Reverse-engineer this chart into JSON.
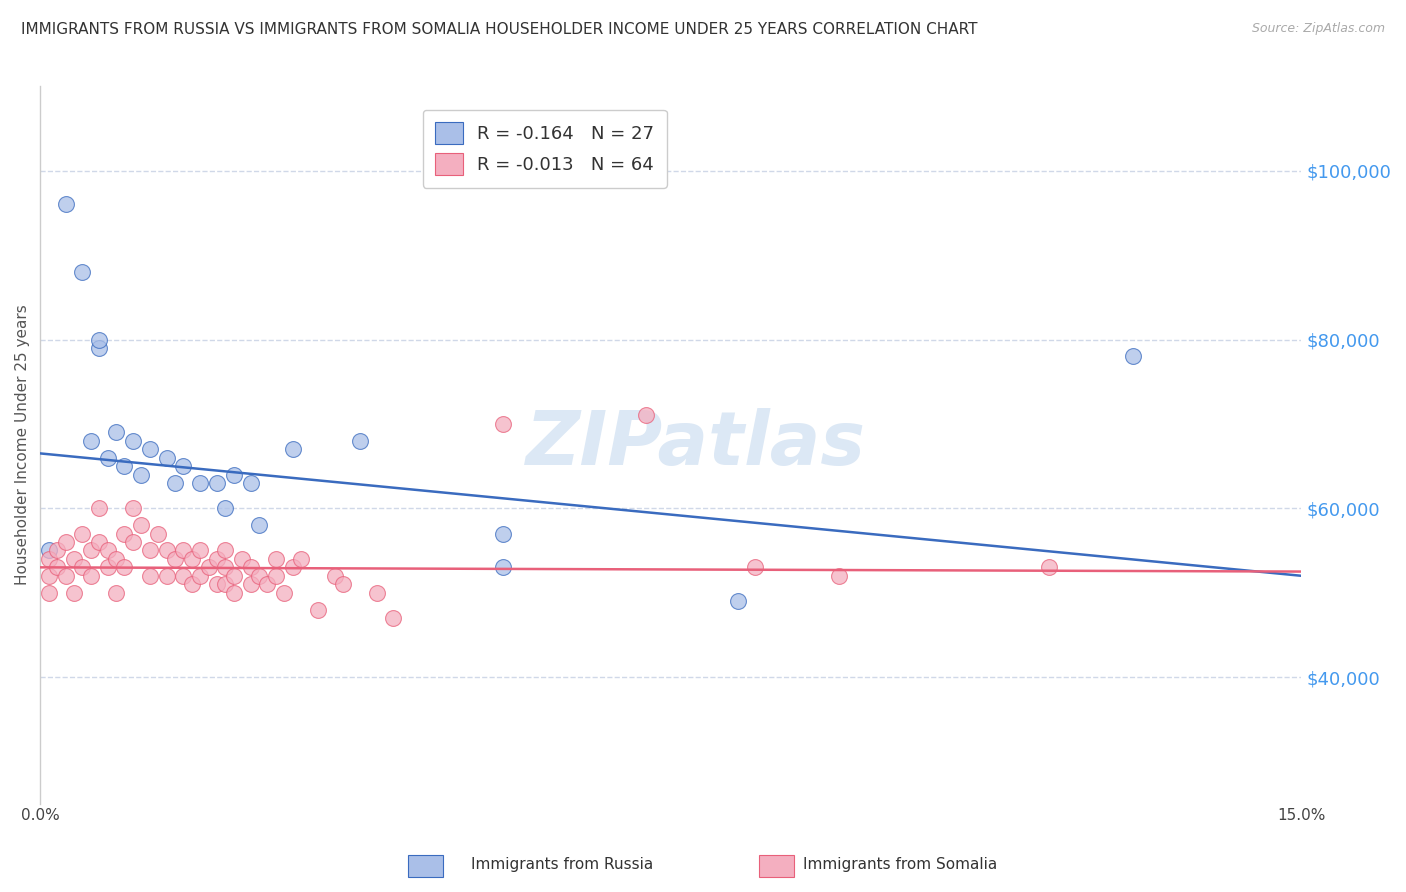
{
  "title": "IMMIGRANTS FROM RUSSIA VS IMMIGRANTS FROM SOMALIA HOUSEHOLDER INCOME UNDER 25 YEARS CORRELATION CHART",
  "source": "Source: ZipAtlas.com",
  "ylabel": "Householder Income Under 25 years",
  "xlim": [
    0.0,
    0.15
  ],
  "ylim": [
    25000,
    110000
  ],
  "xticks": [
    0.0,
    0.03,
    0.06,
    0.09,
    0.12,
    0.15
  ],
  "xticklabels": [
    "0.0%",
    "",
    "",
    "",
    "",
    "15.0%"
  ],
  "yticks": [
    40000,
    60000,
    80000,
    100000
  ],
  "yticklabels": [
    "$40,000",
    "$60,000",
    "$80,000",
    "$100,000"
  ],
  "legend_label1": "R = -0.164   N = 27",
  "legend_label2": "R = -0.013   N = 64",
  "legend_color1": "#aabfe8",
  "legend_color2": "#f4afc0",
  "line_color1": "#3a6bbf",
  "line_color2": "#e8607a",
  "watermark": "ZIPatlas",
  "watermark_color": "#dce8f5",
  "russia_x": [
    0.001,
    0.003,
    0.005,
    0.006,
    0.007,
    0.007,
    0.008,
    0.009,
    0.01,
    0.011,
    0.012,
    0.013,
    0.015,
    0.016,
    0.017,
    0.019,
    0.021,
    0.022,
    0.023,
    0.025,
    0.026,
    0.03,
    0.038,
    0.055,
    0.055,
    0.083,
    0.13
  ],
  "russia_y": [
    55000,
    96000,
    88000,
    68000,
    79000,
    80000,
    66000,
    69000,
    65000,
    68000,
    64000,
    67000,
    66000,
    63000,
    65000,
    63000,
    63000,
    60000,
    64000,
    63000,
    58000,
    67000,
    68000,
    53000,
    57000,
    49000,
    78000
  ],
  "somalia_x": [
    0.001,
    0.001,
    0.001,
    0.002,
    0.002,
    0.003,
    0.003,
    0.004,
    0.004,
    0.005,
    0.005,
    0.006,
    0.006,
    0.007,
    0.007,
    0.008,
    0.008,
    0.009,
    0.009,
    0.01,
    0.01,
    0.011,
    0.011,
    0.012,
    0.013,
    0.013,
    0.014,
    0.015,
    0.015,
    0.016,
    0.017,
    0.017,
    0.018,
    0.018,
    0.019,
    0.019,
    0.02,
    0.021,
    0.021,
    0.022,
    0.022,
    0.022,
    0.023,
    0.023,
    0.024,
    0.025,
    0.025,
    0.026,
    0.027,
    0.028,
    0.028,
    0.029,
    0.03,
    0.031,
    0.033,
    0.035,
    0.036,
    0.04,
    0.042,
    0.055,
    0.072,
    0.085,
    0.095,
    0.12
  ],
  "somalia_y": [
    52000,
    54000,
    50000,
    55000,
    53000,
    56000,
    52000,
    54000,
    50000,
    57000,
    53000,
    55000,
    52000,
    60000,
    56000,
    55000,
    53000,
    54000,
    50000,
    57000,
    53000,
    60000,
    56000,
    58000,
    55000,
    52000,
    57000,
    55000,
    52000,
    54000,
    55000,
    52000,
    54000,
    51000,
    55000,
    52000,
    53000,
    54000,
    51000,
    55000,
    53000,
    51000,
    52000,
    50000,
    54000,
    53000,
    51000,
    52000,
    51000,
    54000,
    52000,
    50000,
    53000,
    54000,
    48000,
    52000,
    51000,
    50000,
    47000,
    70000,
    71000,
    53000,
    52000,
    53000
  ],
  "marker_size": 130,
  "title_fontsize": 11,
  "axis_label_fontsize": 11,
  "tick_fontsize": 11,
  "legend_fontsize": 13,
  "grid_color": "#d0d8e8",
  "background_color": "#ffffff",
  "right_ytick_color": "#4499ee",
  "reg_line1_x0": 0.0,
  "reg_line1_y0": 66500,
  "reg_line1_x1": 0.15,
  "reg_line1_y1": 52000,
  "reg_line2_x0": 0.0,
  "reg_line2_y0": 53000,
  "reg_line2_x1": 0.15,
  "reg_line2_y1": 52500
}
